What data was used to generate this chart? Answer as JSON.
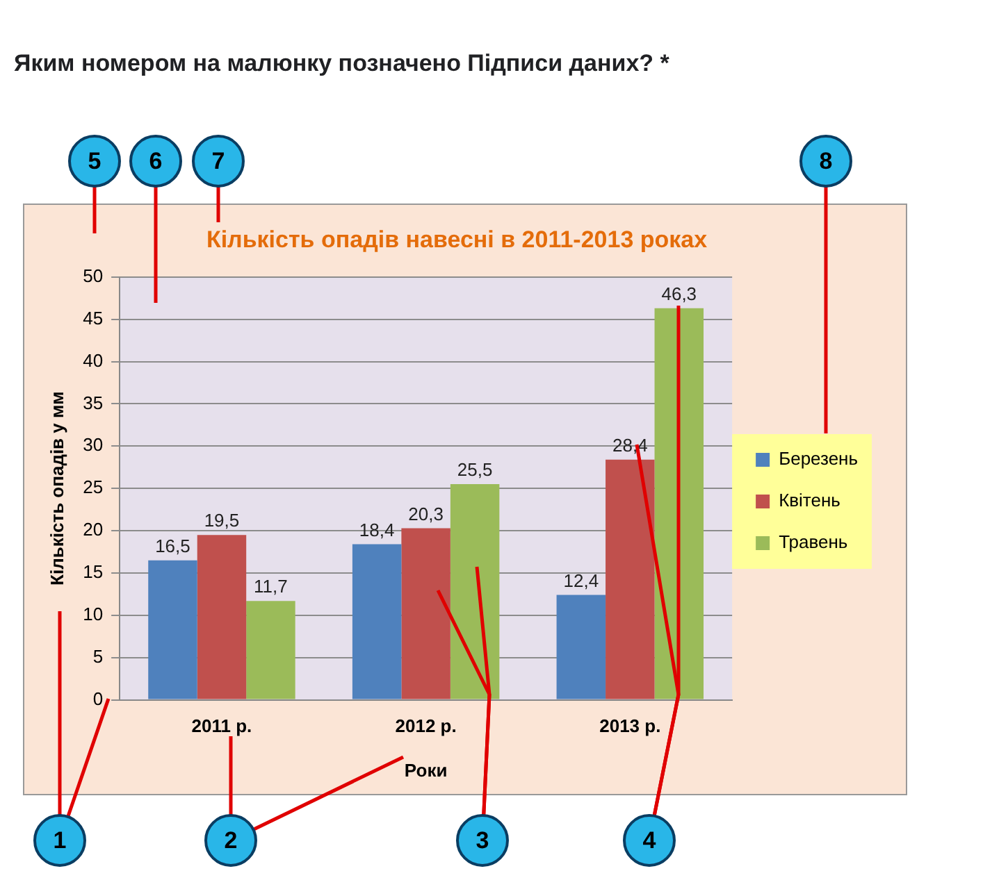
{
  "chart_data": {
    "type": "bar",
    "title": "Кількість опадів навесні в 2011-2013 роках",
    "xlabel": "Роки",
    "ylabel": "Кількість опадів у мм",
    "categories": [
      "2011 р.",
      "2012 р.",
      "2013 р."
    ],
    "series": [
      {
        "name": "Березень",
        "color": "#4f81bd",
        "values": [
          16.5,
          18.4,
          12.4
        ],
        "value_labels": [
          "16,5",
          "18,4",
          "12,4"
        ]
      },
      {
        "name": "Квітень",
        "color": "#c0504d",
        "values": [
          19.5,
          20.3,
          28.4
        ],
        "value_labels": [
          "19,5",
          "20,3",
          "28,4"
        ]
      },
      {
        "name": "Травень",
        "color": "#9bbb59",
        "values": [
          11.7,
          25.5,
          46.3
        ],
        "value_labels": [
          "11,7",
          "25,5",
          "46,3"
        ]
      }
    ],
    "ylim": [
      0,
      50
    ],
    "yticks": [
      0,
      5,
      10,
      15,
      20,
      25,
      30,
      35,
      40,
      45,
      50
    ],
    "grid": "y",
    "legend": "right",
    "annotations": [
      "Яким номером на малюнку позначено Підписи даних? *",
      "5",
      "6",
      "7",
      "8",
      "1",
      "2",
      "3",
      "4"
    ]
  }
}
